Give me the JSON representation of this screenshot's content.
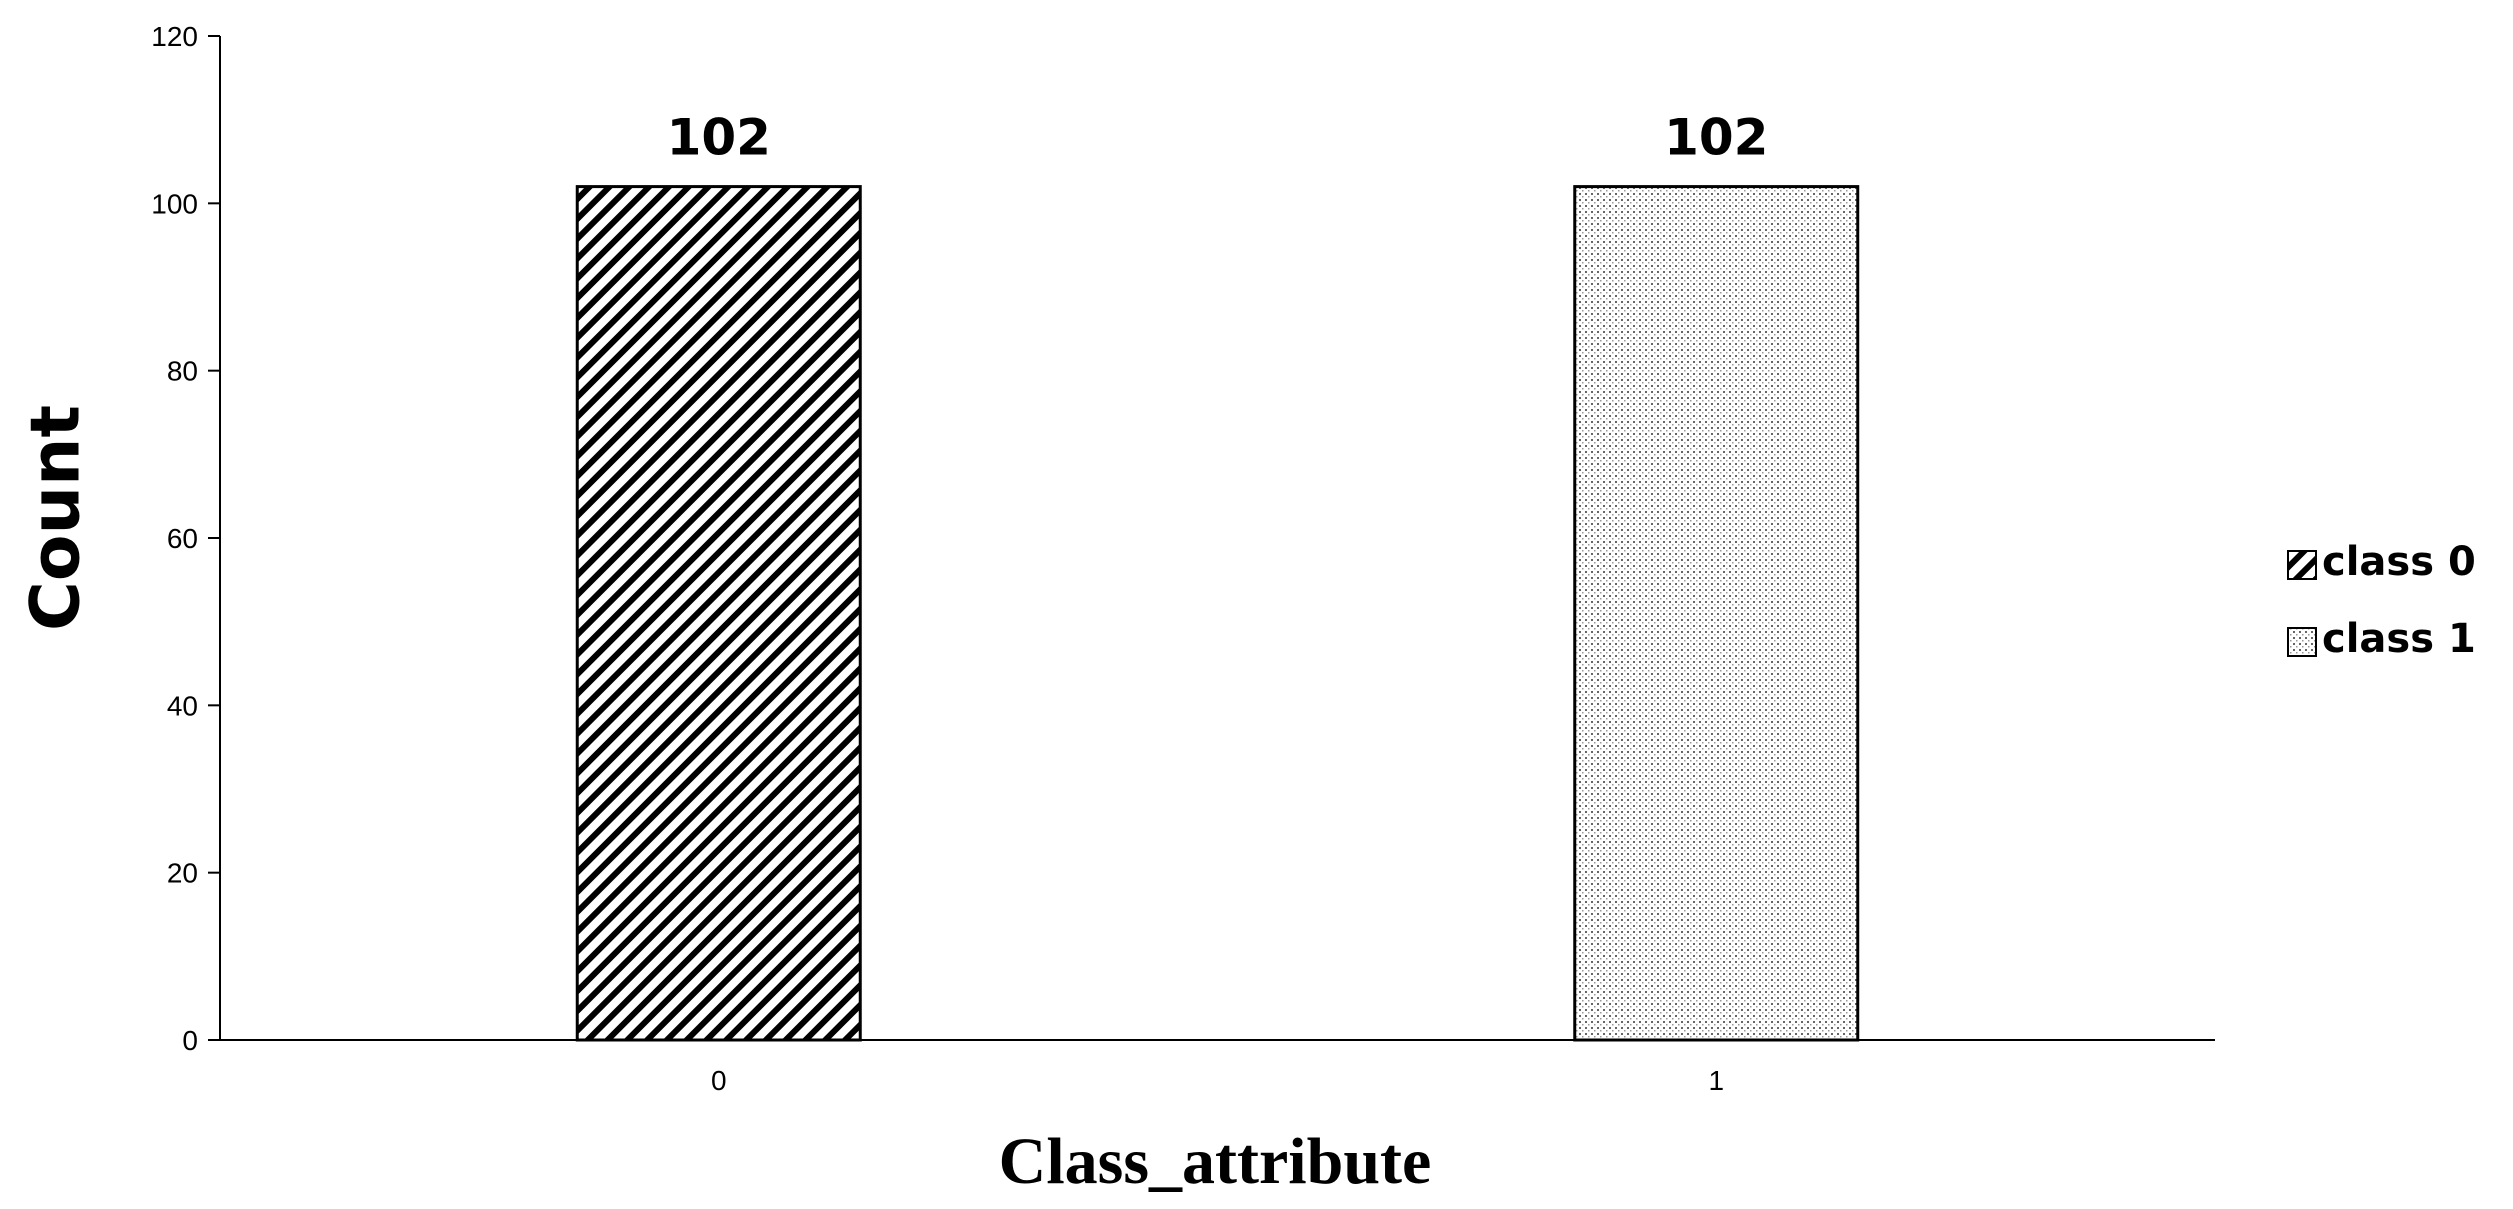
{
  "chart_data": {
    "type": "bar",
    "title": "",
    "xlabel": "Class_attribute",
    "ylabel": "Count",
    "categories": [
      "0",
      "1"
    ],
    "series": [
      {
        "name": "class 0",
        "category": "0",
        "value": 102,
        "pattern": "diagonal-hatch"
      },
      {
        "name": "class 1",
        "category": "1",
        "value": 102,
        "pattern": "dots"
      }
    ],
    "data_labels": [
      "102",
      "102"
    ],
    "ylim": [
      0,
      120
    ],
    "yticks": [
      0,
      20,
      40,
      60,
      80,
      100,
      120
    ],
    "grid": false,
    "legend_position": "right"
  }
}
